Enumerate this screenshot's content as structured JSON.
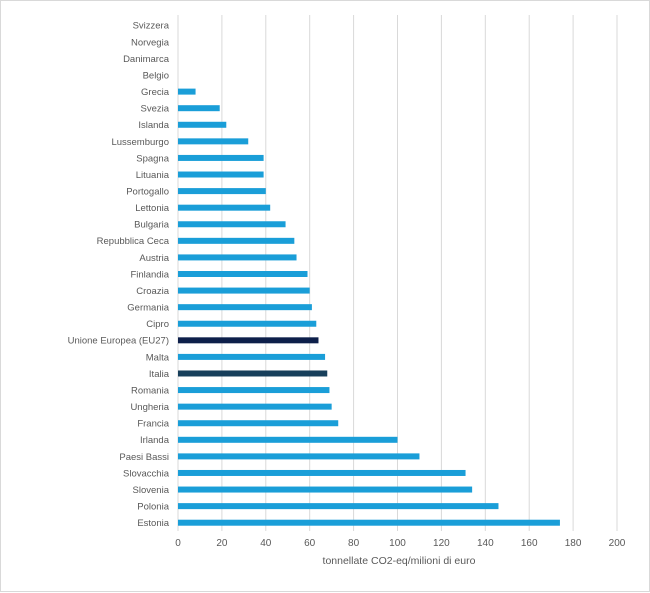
{
  "chart_data": {
    "type": "bar",
    "orientation": "horizontal",
    "categories": [
      "Svizzera",
      "Norvegia",
      "Danimarca",
      "Belgio",
      "Grecia",
      "Svezia",
      "Islanda",
      "Lussemburgo",
      "Spagna",
      "Lituania",
      "Portogallo",
      "Lettonia",
      "Bulgaria",
      "Repubblica Ceca",
      "Austria",
      "Finlandia",
      "Croazia",
      "Germania",
      "Cipro",
      "Unione Europea (EU27)",
      "Malta",
      "Italia",
      "Romania",
      "Ungheria",
      "Francia",
      "Irlanda",
      "Paesi Bassi",
      "Slovacchia",
      "Slovenia",
      "Polonia",
      "Estonia"
    ],
    "values": [
      0,
      0,
      0,
      0,
      8,
      19,
      22,
      32,
      39,
      39,
      40,
      42,
      49,
      53,
      54,
      59,
      60,
      61,
      63,
      64,
      67,
      68,
      69,
      70,
      73,
      100,
      110,
      131,
      134,
      146,
      174
    ],
    "highlight": {
      "Unione Europea (EU27)": "#0d1f4a",
      "Italia": "#173f5b"
    },
    "bar_color": "#1a9ed8",
    "xlabel": "tonnellate CO2-eq/milioni di euro",
    "xlim": [
      0,
      200
    ],
    "xticks": [
      "0",
      "20",
      "40",
      "60",
      "80",
      "100",
      "120",
      "140",
      "160",
      "180",
      "200"
    ],
    "grid": "vertical",
    "legend": "none"
  }
}
